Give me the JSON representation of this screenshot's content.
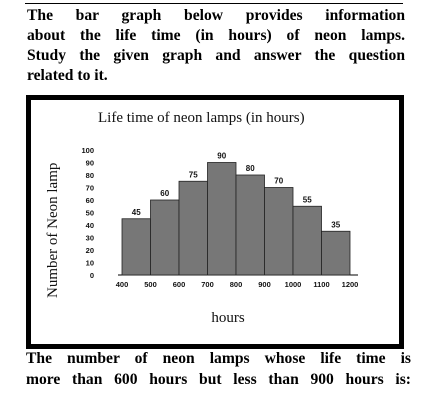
{
  "intro": {
    "lines": [
      "The bar graph below provides information",
      "about the life time (in hours) of neon lamps.",
      "Study the given graph and answer the question",
      "related to it."
    ]
  },
  "question": {
    "lines": [
      "The number of neon lamps whose life time is",
      "more than 600 hours but less than 900 hours is:"
    ]
  },
  "chart_data": {
    "type": "bar",
    "title": "Life time of neon lamps (in hours)",
    "xlabel": "hours",
    "ylabel": "Number of Neon lamp",
    "x_ticks": [
      "400",
      "500",
      "600",
      "700",
      "800",
      "900",
      "1000",
      "1100",
      "1200"
    ],
    "y_ticks": [
      "0",
      "10",
      "20",
      "30",
      "40",
      "50",
      "60",
      "70",
      "80",
      "90",
      "100"
    ],
    "ylim": [
      0,
      100
    ],
    "bins": [
      [
        400,
        500
      ],
      [
        500,
        600
      ],
      [
        600,
        700
      ],
      [
        700,
        800
      ],
      [
        800,
        900
      ],
      [
        900,
        1000
      ],
      [
        1000,
        1100
      ],
      [
        1100,
        1200
      ]
    ],
    "values": [
      45,
      60,
      75,
      90,
      80,
      70,
      55,
      35
    ],
    "bar_color": "#777777",
    "grid": false
  }
}
